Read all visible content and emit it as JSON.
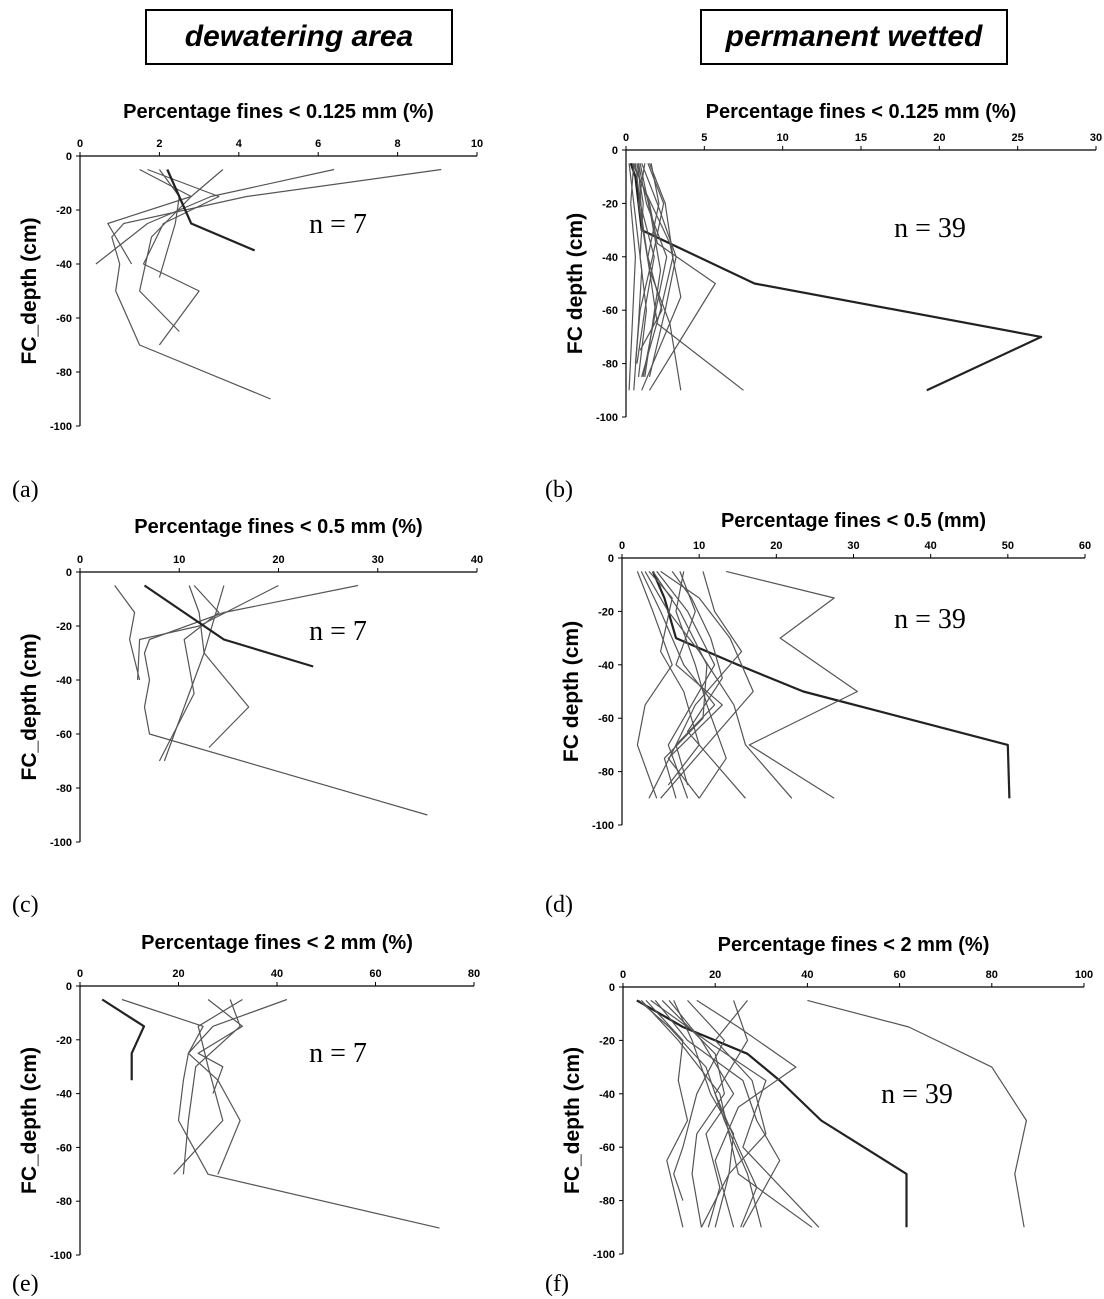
{
  "headers": {
    "left": "dewatering area",
    "right": "permanent wetted"
  },
  "chart_data": [
    {
      "type": "line",
      "panel": "(a)",
      "title": "Percentage fines < 0.125 mm (%)",
      "ylabel": "FC_depth (cm)",
      "xlim": [
        0,
        10
      ],
      "xticks": [
        0,
        2,
        4,
        6,
        8,
        10
      ],
      "ylim": [
        -100,
        0
      ],
      "yticks": [
        0,
        -20,
        -40,
        -60,
        -80,
        -100
      ],
      "annotation": "n = 7",
      "series": [
        {
          "x": [
            9.1,
            4.2,
            1.1,
            0.8,
            1.0,
            0.9,
            1.5,
            4.8
          ],
          "y": [
            -5,
            -15,
            -25,
            -30,
            -40,
            -50,
            -70,
            -90
          ]
        },
        {
          "x": [
            6.4,
            3.3,
            1.7,
            0.4
          ],
          "y": [
            -5,
            -15,
            -25,
            -40
          ]
        },
        {
          "x": [
            3.6,
            2.8,
            1.8,
            1.5,
            2.5
          ],
          "y": [
            -5,
            -15,
            -30,
            -50,
            -65
          ]
        },
        {
          "x": [
            1.7,
            3.5,
            2.1,
            1.6,
            3.0,
            2.0
          ],
          "y": [
            -5,
            -15,
            -25,
            -40,
            -50,
            -70
          ]
        },
        {
          "x": [
            1.5,
            2.8,
            0.7,
            1.3
          ],
          "y": [
            -5,
            -15,
            -25,
            -40
          ]
        },
        {
          "x": [
            2.0,
            2.5,
            2.4,
            2.2,
            2.0
          ],
          "y": [
            -5,
            -15,
            -25,
            -35,
            -45
          ]
        },
        {
          "x": [
            2.2,
            2.8,
            4.4
          ],
          "y": [
            -5,
            -25,
            -35
          ],
          "emph": true
        }
      ]
    },
    {
      "type": "line",
      "panel": "(b)",
      "title": "Percentage fines < 0.125 mm (%)",
      "ylabel": "FC depth (cm)",
      "xlim": [
        0,
        30
      ],
      "xticks": [
        0,
        5,
        10,
        15,
        20,
        25,
        30
      ],
      "ylim": [
        -100,
        0
      ],
      "yticks": [
        0,
        -20,
        -40,
        -60,
        -80,
        -100
      ],
      "annotation": "n = 39",
      "series": [
        {
          "x": [
            0.3,
            0.6,
            0.8,
            1.0,
            8.2,
            26.5,
            19.2
          ],
          "y": [
            -5,
            -10,
            -20,
            -30,
            -50,
            -70,
            -90
          ],
          "emph": true
        },
        {
          "x": [
            0.5,
            1.5,
            2.0,
            5.7,
            1.5
          ],
          "y": [
            -5,
            -20,
            -35,
            -50,
            -90
          ]
        },
        {
          "x": [
            0.8,
            1.0,
            1.5,
            2.0,
            7.5
          ],
          "y": [
            -5,
            -25,
            -45,
            -65,
            -90
          ]
        },
        {
          "x": [
            1.0,
            2.0,
            3.2,
            2.5,
            1.5
          ],
          "y": [
            -5,
            -20,
            -40,
            -60,
            -85
          ]
        },
        {
          "x": [
            0.4,
            1.2,
            2.8,
            3.5,
            1.0
          ],
          "y": [
            -5,
            -15,
            -35,
            -55,
            -90
          ]
        },
        {
          "x": [
            1.5,
            2.5,
            3.0,
            2.2,
            1.0
          ],
          "y": [
            -5,
            -20,
            -40,
            -60,
            -85
          ]
        },
        {
          "x": [
            0.2,
            0.6,
            1.0,
            0.8,
            0.5
          ],
          "y": [
            -5,
            -25,
            -45,
            -65,
            -90
          ]
        },
        {
          "x": [
            0.6,
            0.9,
            1.8,
            1.2,
            0.7
          ],
          "y": [
            -5,
            -20,
            -40,
            -60,
            -80
          ]
        },
        {
          "x": [
            1.2,
            0.8,
            1.5,
            2.8,
            3.5
          ],
          "y": [
            -5,
            -20,
            -45,
            -65,
            -90
          ]
        },
        {
          "x": [
            0.9,
            1.6,
            2.2,
            1.7,
            1.2
          ],
          "y": [
            -5,
            -25,
            -45,
            -65,
            -85
          ]
        },
        {
          "x": [
            0.5,
            0.3,
            0.6,
            0.4,
            0.2
          ],
          "y": [
            -5,
            -20,
            -40,
            -65,
            -90
          ]
        },
        {
          "x": [
            1.6,
            2.1,
            1.4,
            2.3,
            0.9
          ],
          "y": [
            -5,
            -20,
            -40,
            -60,
            -75
          ]
        },
        {
          "x": [
            0.8,
            1.3,
            2.6,
            1.9,
            1.1
          ],
          "y": [
            -5,
            -20,
            -40,
            -60,
            -85
          ]
        },
        {
          "x": [
            1.4,
            2.4,
            1.7,
            0.9,
            0.6
          ],
          "y": [
            -5,
            -20,
            -40,
            -60,
            -80
          ]
        },
        {
          "x": [
            0.7,
            1.1,
            0.9,
            1.3,
            0.8
          ],
          "y": [
            -5,
            -20,
            -40,
            -60,
            -85
          ]
        }
      ]
    },
    {
      "type": "line",
      "panel": "(c)",
      "title": "Percentage fines < 0.5 mm (%)",
      "ylabel": "FC_depth (cm)",
      "xlim": [
        0,
        40
      ],
      "xticks": [
        0,
        10,
        20,
        30,
        40
      ],
      "ylim": [
        -100,
        0
      ],
      "yticks": [
        0,
        -20,
        -40,
        -60,
        -80,
        -100
      ],
      "annotation": "n = 7",
      "series": [
        {
          "x": [
            28.0,
            14.5,
            7.0,
            6.5,
            7.0,
            6.5,
            7.0,
            35.0
          ],
          "y": [
            -5,
            -15,
            -25,
            -30,
            -40,
            -50,
            -60,
            -90
          ]
        },
        {
          "x": [
            20.0,
            12.0,
            6.0,
            5.8
          ],
          "y": [
            -5,
            -20,
            -25,
            -40
          ]
        },
        {
          "x": [
            14.5,
            12.5,
            10.5,
            8.5
          ],
          "y": [
            -5,
            -30,
            -50,
            -70
          ]
        },
        {
          "x": [
            11.0,
            12.0,
            12.5,
            17.0,
            13.0
          ],
          "y": [
            -5,
            -15,
            -30,
            -50,
            -65
          ]
        },
        {
          "x": [
            3.5,
            5.5,
            5.0,
            6.0
          ],
          "y": [
            -5,
            -15,
            -25,
            -40
          ]
        },
        {
          "x": [
            11.5,
            14.0,
            10.5,
            11.5,
            8.0
          ],
          "y": [
            -5,
            -15,
            -25,
            -45,
            -70
          ]
        },
        {
          "x": [
            6.5,
            10.5,
            14.5,
            23.5
          ],
          "y": [
            -5,
            -15,
            -25,
            -35
          ],
          "emph": true
        }
      ]
    },
    {
      "type": "line",
      "panel": "(d)",
      "title": "Percentage fines < 0.5 (mm)",
      "ylabel": "FC depth (cm)",
      "xlim": [
        0,
        60
      ],
      "xticks": [
        0,
        10,
        20,
        30,
        40,
        50,
        60
      ],
      "ylim": [
        -100,
        0
      ],
      "yticks": [
        0,
        -20,
        -40,
        -60,
        -80,
        -100
      ],
      "annotation": "n = 39",
      "series": [
        {
          "x": [
            4.0,
            5.5,
            7.0,
            15.0,
            23.5,
            50.0,
            50.2
          ],
          "y": [
            -5,
            -15,
            -30,
            -40,
            -50,
            -70,
            -90
          ],
          "emph": true
        },
        {
          "x": [
            13.5,
            27.5,
            20.5,
            30.5,
            16.5,
            27.5
          ],
          "y": [
            -5,
            -15,
            -30,
            -50,
            -70,
            -90
          ]
        },
        {
          "x": [
            2.5,
            5.0,
            8.0,
            12.0,
            7.0,
            3.5
          ],
          "y": [
            -5,
            -20,
            -40,
            -55,
            -70,
            -90
          ]
        },
        {
          "x": [
            3.0,
            6.0,
            10.0,
            14.5,
            16.0,
            22.0
          ],
          "y": [
            -5,
            -20,
            -35,
            -55,
            -70,
            -90
          ]
        },
        {
          "x": [
            4.5,
            8.5,
            12.0,
            9.0,
            6.0,
            8.5
          ],
          "y": [
            -5,
            -20,
            -40,
            -55,
            -70,
            -90
          ]
        },
        {
          "x": [
            5.0,
            10.0,
            14.0,
            17.0,
            11.0,
            5.0
          ],
          "y": [
            -5,
            -15,
            -30,
            -50,
            -70,
            -90
          ]
        },
        {
          "x": [
            6.5,
            9.0,
            11.5,
            13.0,
            8.5,
            16.0
          ],
          "y": [
            -5,
            -15,
            -30,
            -45,
            -65,
            -90
          ]
        },
        {
          "x": [
            2.0,
            4.0,
            6.5,
            3.0,
            2.0,
            4.5
          ],
          "y": [
            -5,
            -20,
            -40,
            -55,
            -70,
            -90
          ]
        },
        {
          "x": [
            8.0,
            7.0,
            9.5,
            11.0,
            13.5,
            10.0
          ],
          "y": [
            -5,
            -20,
            -40,
            -55,
            -75,
            -90
          ]
        },
        {
          "x": [
            3.5,
            6.5,
            5.0,
            8.0,
            10.0,
            6.0
          ],
          "y": [
            -5,
            -15,
            -35,
            -50,
            -70,
            -85
          ]
        },
        {
          "x": [
            7.5,
            9.5,
            7.0,
            13.0,
            6.0,
            10.0
          ],
          "y": [
            -5,
            -20,
            -40,
            -55,
            -75,
            -90
          ]
        },
        {
          "x": [
            10.5,
            12.0,
            15.5,
            9.5,
            7.0,
            8.5
          ],
          "y": [
            -5,
            -20,
            -35,
            -55,
            -70,
            -85
          ]
        },
        {
          "x": [
            4.0,
            7.5,
            11.0,
            10.5,
            5.5,
            7.0
          ],
          "y": [
            -5,
            -20,
            -40,
            -60,
            -75,
            -90
          ]
        }
      ]
    },
    {
      "type": "line",
      "panel": "(e)",
      "title": "Percentage fines < 2 mm (%)",
      "ylabel": "FC_depth (cm)",
      "xlim": [
        0,
        80
      ],
      "xticks": [
        0,
        20,
        40,
        60,
        80
      ],
      "ylim": [
        -100,
        0
      ],
      "yticks": [
        0,
        -20,
        -40,
        -60,
        -80,
        -100
      ],
      "annotation": "n = 7",
      "series": [
        {
          "x": [
            42.0,
            27.0,
            22.0,
            21.0,
            20.0,
            26.0,
            73.0
          ],
          "y": [
            -5,
            -15,
            -25,
            -35,
            -50,
            -70,
            -90
          ]
        },
        {
          "x": [
            33.0,
            24.0,
            26.0,
            29.0,
            19.0
          ],
          "y": [
            -5,
            -15,
            -30,
            -50,
            -70
          ]
        },
        {
          "x": [
            8.5,
            25.0,
            22.0,
            28.0,
            32.5,
            28.0
          ],
          "y": [
            -5,
            -15,
            -25,
            -35,
            -50,
            -70
          ]
        },
        {
          "x": [
            26.0,
            33.0,
            24.0,
            29.0,
            27.0
          ],
          "y": [
            -5,
            -15,
            -25,
            -30,
            -40
          ]
        },
        {
          "x": [
            30.5,
            32.5,
            23.5,
            22.0,
            21.0
          ],
          "y": [
            -5,
            -15,
            -30,
            -50,
            -70
          ]
        },
        {
          "x": [
            4.5,
            13.0,
            10.5,
            10.5
          ],
          "y": [
            -5,
            -15,
            -25,
            -35
          ],
          "emph": true
        }
      ]
    },
    {
      "type": "line",
      "panel": "(f)",
      "title": "Percentage fines < 2 mm (%)",
      "ylabel": "FC_depth (cm)",
      "xlim": [
        0,
        100
      ],
      "xticks": [
        0,
        20,
        40,
        60,
        80,
        100
      ],
      "ylim": [
        -100,
        0
      ],
      "yticks": [
        0,
        -20,
        -40,
        -60,
        -80,
        -100
      ],
      "annotation": "n = 39",
      "series": [
        {
          "x": [
            40.0,
            62.0,
            80.0,
            87.5,
            85.0,
            87.0
          ],
          "y": [
            -5,
            -15,
            -30,
            -50,
            -70,
            -90
          ]
        },
        {
          "x": [
            3.0,
            8.0,
            13.0,
            20.0,
            27.0,
            34.0,
            43.0,
            61.5,
            61.5
          ],
          "y": [
            -5,
            -10,
            -15,
            -20,
            -25,
            -35,
            -50,
            -70,
            -90
          ],
          "emph": true
        },
        {
          "x": [
            4.0,
            12.0,
            21.0,
            25.0,
            41.0
          ],
          "y": [
            -5,
            -20,
            -40,
            -70,
            -90
          ]
        },
        {
          "x": [
            6.0,
            18.0,
            31.0,
            26.0,
            42.5
          ],
          "y": [
            -5,
            -20,
            -35,
            -60,
            -90
          ]
        },
        {
          "x": [
            5.0,
            13.0,
            12.0,
            14.0,
            9.5,
            13.0
          ],
          "y": [
            -5,
            -20,
            -35,
            -50,
            -65,
            -90
          ]
        },
        {
          "x": [
            8.5,
            20.0,
            22.0,
            16.0,
            15.0,
            17.0
          ],
          "y": [
            -5,
            -25,
            -40,
            -55,
            -70,
            -90
          ]
        },
        {
          "x": [
            16.0,
            25.0,
            37.5,
            25.0,
            20.0,
            24.0
          ],
          "y": [
            -5,
            -15,
            -30,
            -45,
            -65,
            -90
          ]
        },
        {
          "x": [
            11.0,
            15.0,
            19.0,
            24.0,
            23.0,
            20.0
          ],
          "y": [
            -5,
            -20,
            -40,
            -55,
            -70,
            -90
          ]
        },
        {
          "x": [
            3.5,
            10.0,
            18.0,
            22.0,
            27.0,
            30.0
          ],
          "y": [
            -5,
            -15,
            -30,
            -50,
            -70,
            -90
          ]
        },
        {
          "x": [
            27.0,
            20.0,
            28.0,
            31.0,
            23.0,
            17.0
          ],
          "y": [
            -5,
            -20,
            -35,
            -55,
            -70,
            -90
          ]
        },
        {
          "x": [
            7.0,
            14.0,
            26.0,
            29.0,
            34.0,
            26.0
          ],
          "y": [
            -5,
            -20,
            -35,
            -50,
            -65,
            -90
          ]
        },
        {
          "x": [
            10.0,
            17.0,
            24.0,
            18.0,
            21.0,
            18.5
          ],
          "y": [
            -5,
            -20,
            -40,
            -55,
            -75,
            -90
          ]
        },
        {
          "x": [
            14.0,
            22.0,
            16.0,
            13.0,
            11.0,
            13.0
          ],
          "y": [
            -5,
            -20,
            -40,
            -60,
            -70,
            -80
          ]
        },
        {
          "x": [
            24.0,
            27.0,
            20.0,
            25.0,
            29.0,
            25.5
          ],
          "y": [
            -5,
            -20,
            -40,
            -60,
            -75,
            -90
          ]
        }
      ]
    }
  ]
}
